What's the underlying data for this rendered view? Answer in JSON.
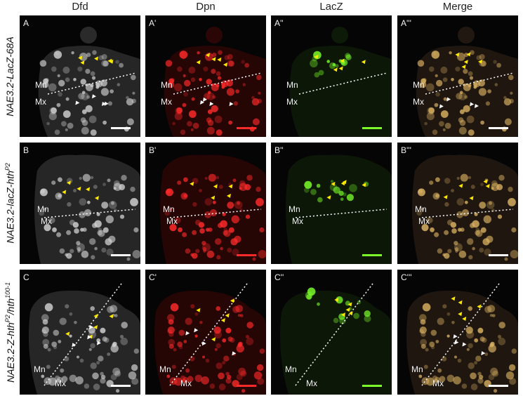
{
  "columns": [
    "Dfd",
    "Dpn",
    "LacZ",
    "Merge"
  ],
  "rows": [
    {
      "genotype": "NAE3.2-LacZ-68A",
      "labels": [
        "A",
        "A'",
        "A''",
        "A'''"
      ]
    },
    {
      "genotype": "NAE3.2-lacZ-hth",
      "superscript": "P2",
      "labels": [
        "B",
        "B'",
        "B''",
        "B'''"
      ]
    },
    {
      "genotype": "NAE3.2-Z-hth",
      "superscript": "P2",
      "genotype2": "/hth",
      "superscript2": "100-1",
      "labels": [
        "C",
        "C'",
        "C''",
        "C'''"
      ]
    }
  ],
  "regions": {
    "mn": "Mn",
    "mx": "Mx"
  },
  "colors": {
    "dfd": "#cfcfcf",
    "dpn": "#ff2a2a",
    "lacz": "#7cff2a",
    "merge": "#d8b060",
    "arrow_yellow": "#ffea00",
    "arrow_white": "#ffffff",
    "background": "#050505"
  }
}
